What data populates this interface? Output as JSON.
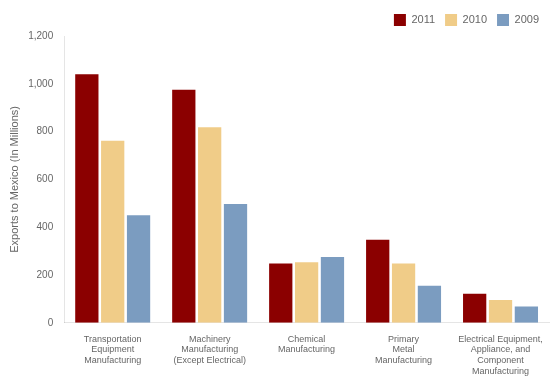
{
  "chart_data": {
    "type": "bar",
    "categories": [
      "Transportation\nEquipment\nManufacturing",
      "Machinery\nManufacturing\n(Except Electrical)",
      "Chemical\nManufacturing",
      "Primary\nMetal\nManufacturing",
      "Electrical Equipment,\nAppliance, and\nComponent\nManufacturing"
    ],
    "series": [
      {
        "name": "2011",
        "color": "#8B0000",
        "values": [
          1040,
          975,
          248,
          347,
          122
        ]
      },
      {
        "name": "2010",
        "color": "#F0CC88",
        "values": [
          762,
          818,
          253,
          248,
          95
        ]
      },
      {
        "name": "2009",
        "color": "#7B9CC0",
        "values": [
          450,
          497,
          275,
          155,
          68
        ]
      }
    ],
    "ylabel": "Exports to Mexico (In Millions)",
    "ylim": [
      0,
      1200
    ],
    "yticks": [
      0,
      200,
      400,
      600,
      800,
      {
        "value": 1000,
        "label": "1,000"
      },
      {
        "value": 1200,
        "label": "1,200"
      }
    ],
    "grid": false,
    "legend": "upper right"
  }
}
